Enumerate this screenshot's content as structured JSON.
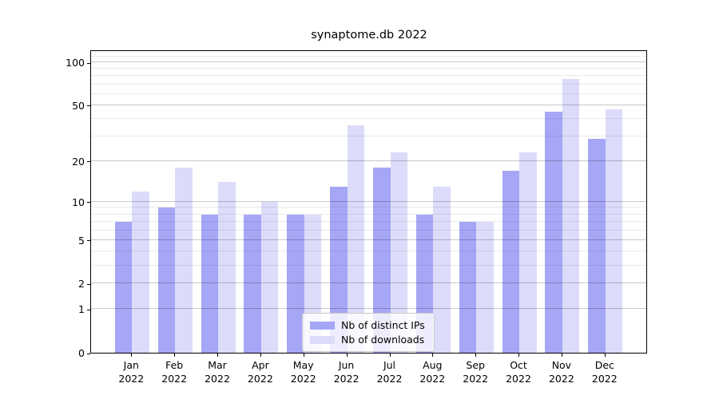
{
  "title": "synaptome.db 2022",
  "colors": {
    "distinct_ips_bar": "#a6a6f6",
    "downloads_bar": "#dcdcfa",
    "grid_major": "rgba(0,0,0,0.22)",
    "grid_minor": "rgba(0,0,0,0.08)",
    "axis": "#000000"
  },
  "legend": {
    "items": [
      {
        "label": "Nb of distinct IPs",
        "color": "#a6a6f6"
      },
      {
        "label": "Nb of downloads",
        "color": "#dcdcfa"
      }
    ]
  },
  "y_axis": {
    "tick_labels": [
      "100",
      "50",
      "20",
      "10",
      "5",
      "2",
      "1",
      "0"
    ]
  },
  "x_axis": {
    "year": "2022",
    "months": [
      "Jan",
      "Feb",
      "Mar",
      "Apr",
      "May",
      "Jun",
      "Jul",
      "Aug",
      "Sep",
      "Oct",
      "Nov",
      "Dec"
    ]
  },
  "chart_data": {
    "type": "bar",
    "title": "synaptome.db 2022",
    "categories": [
      "Jan 2022",
      "Feb 2022",
      "Mar 2022",
      "Apr 2022",
      "May 2022",
      "Jun 2022",
      "Jul 2022",
      "Aug 2022",
      "Sep 2022",
      "Oct 2022",
      "Nov 2022",
      "Dec 2022"
    ],
    "series": [
      {
        "name": "Nb of distinct IPs",
        "color": "#a6a6f6",
        "values": [
          7,
          9,
          8,
          8,
          8,
          13,
          18,
          8,
          7,
          17,
          45,
          29
        ]
      },
      {
        "name": "Nb of downloads",
        "color": "#dcdcfa",
        "values": [
          12,
          18,
          14,
          10,
          8,
          36,
          23,
          13,
          7,
          23,
          76,
          47
        ]
      }
    ],
    "xlabel": "",
    "ylabel": "",
    "yscale": "log1p",
    "y_major_ticks": [
      0,
      1,
      2,
      5,
      10,
      20,
      50,
      100
    ],
    "y_minor_gridlines": [
      3,
      4,
      6,
      7,
      8,
      9,
      30,
      40,
      60,
      70,
      80,
      90,
      110,
      120
    ],
    "ylim": [
      0,
      123
    ],
    "grid": true,
    "legend_position": "lower center"
  }
}
